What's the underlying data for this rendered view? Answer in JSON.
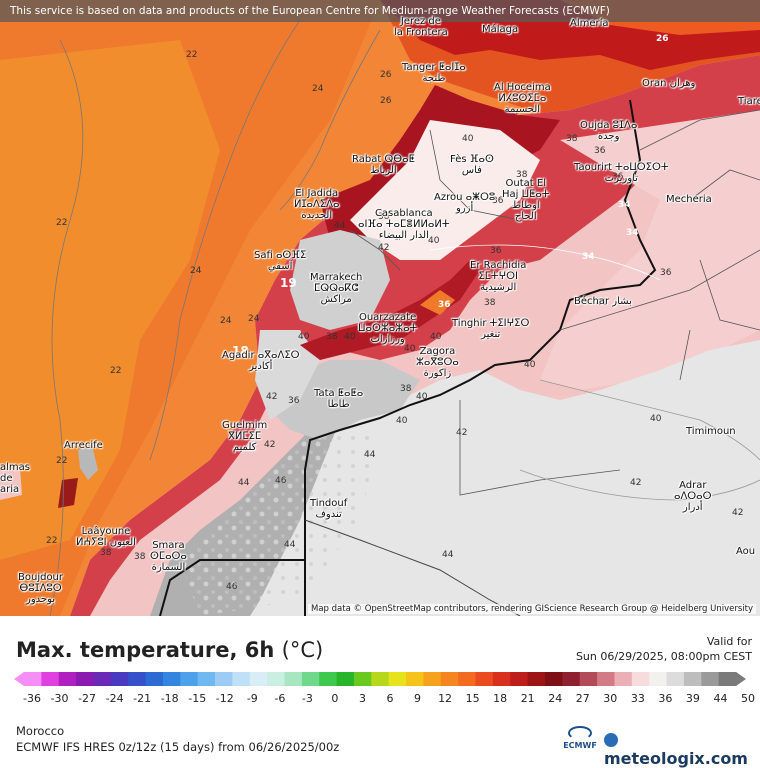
{
  "banner": "This service is based on data and products of the European Centre for Medium-range Weather Forecasts (ECMWF)",
  "attribution": "Map data © OpenStreetMap contributors, rendering GIScience Research Group @ Heidelberg University",
  "cities": [
    {
      "key": "jerez",
      "label": "Jerez de\nla Frontera"
    },
    {
      "key": "malaga",
      "label": "Málaga"
    },
    {
      "key": "almeria",
      "label": "Almería"
    },
    {
      "key": "tanger",
      "label": "Tanger ⵟⴰⵏⵊⴰ\nطنجة"
    },
    {
      "key": "alhoceima",
      "label": "Al Hoceima\nⵍⵃⵓⵙⵉⵎⴰ\nالحسيمة"
    },
    {
      "key": "oran",
      "label": "Oran وهران"
    },
    {
      "key": "tiaret",
      "label": "Tiare"
    },
    {
      "key": "oujda",
      "label": "Oujda ⵓⵊⴷⴰ\nوجدة"
    },
    {
      "key": "rabat",
      "label": "Rabat ⵕⴱⴰⵟ\nالرباط"
    },
    {
      "key": "fes",
      "label": "Fès ⴼⴰⵙ\nفاس"
    },
    {
      "key": "taourirt",
      "label": "Taourirt ⵜⴰⵡⵔⵉⵔⵜ\nتاوريرت"
    },
    {
      "key": "eljadida",
      "label": "El Jadida\nⵍⵊⴰⴷⵉⴷⴰ\nالجديدة"
    },
    {
      "key": "outatelhaj",
      "label": "Outat El\nHaj ⵡⵟⴰⵜ\nاوطاط\nالحاج"
    },
    {
      "key": "azrou",
      "label": "Azrou ⴰⵥⵔⵓ\nأزرو"
    },
    {
      "key": "mecheria",
      "label": "Mecheria"
    },
    {
      "key": "casablanca",
      "label": "Casablanca\nⴰⵏⴼⴰ ⵜⴰⵎⴻⵍⵍⴰⵍⵜ\nالدار البيضاء"
    },
    {
      "key": "safi",
      "label": "Safi ⴰⵙⴼⵉ\nآسفي"
    },
    {
      "key": "errachidia",
      "label": "Er Rachidia\nⵉⵎⵜⵖⵔⵏ\nالرشيدية"
    },
    {
      "key": "marrakech",
      "label": "Marrakech\nⵎⵕⵕⴰⴽⵛ\nمراكش"
    },
    {
      "key": "bechar",
      "label": "Béchar بشار"
    },
    {
      "key": "ouarzazate",
      "label": "Ouarzazate\nⵡⴰⵔⵣⴰⵣⴰⵜ\nورزازات"
    },
    {
      "key": "tinghir",
      "label": "Tinghir ⵜⵉⵏⵖⵉⵔ\nتنغير"
    },
    {
      "key": "agadir",
      "label": "Agadir ⴰⴳⴰⴷⵉⵔ\nأكادير"
    },
    {
      "key": "zagora",
      "label": "Zagora\nⵣⴰⴳⵓⵔⴰ\nزاكورة"
    },
    {
      "key": "tata",
      "label": "Tata ⵟⴰⵟⴰ\nطاطا"
    },
    {
      "key": "guelmim",
      "label": "Guelmim\nⴳⵍⵎⵉⵎ\nكلميم"
    },
    {
      "key": "timimoun",
      "label": "Timimoun"
    },
    {
      "key": "arrecife",
      "label": "Arrecife"
    },
    {
      "key": "palmas",
      "label": "almas\nde\naria"
    },
    {
      "key": "tindouf",
      "label": "Tindouf\nتندوف"
    },
    {
      "key": "laayoune",
      "label": "Laâyoune\nⵍⵄⵢⵓⵏ العيون"
    },
    {
      "key": "adrar",
      "label": "Adrar\nⴰⴷⵔⴰⵔ\nأدرار"
    },
    {
      "key": "smara",
      "label": "Smara\nⵙⵎⴰⵔⴰ\nالسمارة"
    },
    {
      "key": "boujdour",
      "label": "Boujdour\nⴱⵓⵊⴷⵓⵔ\nبوجدور"
    },
    {
      "key": "aoulef",
      "label": "Aou"
    }
  ],
  "isotherm_labels": [
    {
      "key": "i1",
      "text": "26"
    },
    {
      "key": "i2",
      "text": "22"
    },
    {
      "key": "i3",
      "text": "24"
    },
    {
      "key": "i4",
      "text": "26"
    },
    {
      "key": "i5",
      "text": "22"
    },
    {
      "key": "i6",
      "text": "24"
    },
    {
      "key": "i7",
      "text": "22"
    },
    {
      "key": "i8",
      "text": "24"
    },
    {
      "key": "i9",
      "text": "22"
    },
    {
      "key": "i10",
      "text": "40"
    },
    {
      "key": "i11",
      "text": "38"
    },
    {
      "key": "i12",
      "text": "36"
    },
    {
      "key": "i13",
      "text": "38"
    },
    {
      "key": "i14",
      "text": "34"
    },
    {
      "key": "i15",
      "text": "34"
    },
    {
      "key": "i16",
      "text": "36"
    },
    {
      "key": "i17",
      "text": "40"
    },
    {
      "key": "i18",
      "text": "44"
    },
    {
      "key": "i19",
      "text": "42"
    },
    {
      "key": "i20",
      "text": "40"
    },
    {
      "key": "i21",
      "text": "40"
    },
    {
      "key": "i22",
      "text": "38"
    },
    {
      "key": "i23",
      "text": "38"
    },
    {
      "key": "i24",
      "text": "40"
    },
    {
      "key": "i25",
      "text": "42"
    },
    {
      "key": "i26",
      "text": "40"
    },
    {
      "key": "i27",
      "text": "42"
    },
    {
      "key": "i28",
      "text": "44"
    },
    {
      "key": "i29",
      "text": "46"
    },
    {
      "key": "i30",
      "text": "44"
    },
    {
      "key": "i31",
      "text": "44"
    },
    {
      "key": "i32",
      "text": "46"
    },
    {
      "key": "i33",
      "text": "42"
    },
    {
      "key": "i34",
      "text": "44"
    },
    {
      "key": "i35",
      "text": "38"
    },
    {
      "key": "i36",
      "text": "42"
    },
    {
      "key": "i37",
      "text": "36"
    },
    {
      "key": "i38",
      "text": "40"
    },
    {
      "key": "i39",
      "text": "42"
    },
    {
      "key": "i40",
      "text": "40"
    },
    {
      "key": "i41",
      "text": "38"
    },
    {
      "key": "i42",
      "text": "36"
    },
    {
      "key": "i43",
      "text": "38"
    },
    {
      "key": "i44",
      "text": "40"
    },
    {
      "key": "i45",
      "text": "38"
    },
    {
      "key": "i46",
      "text": "36"
    },
    {
      "key": "i47",
      "text": "34"
    },
    {
      "key": "i48",
      "text": "36"
    },
    {
      "key": "i49",
      "text": "26"
    },
    {
      "key": "i50",
      "text": "40"
    },
    {
      "key": "i51",
      "text": "22"
    },
    {
      "key": "i52",
      "text": "24"
    },
    {
      "key": "i53",
      "text": "18"
    },
    {
      "key": "i54",
      "text": "19"
    },
    {
      "key": "i55",
      "text": "36"
    },
    {
      "key": "i56",
      "text": "40"
    }
  ],
  "footer": {
    "title": "Max. temperature, 6h",
    "unit": "(°C)",
    "valid_label": "Valid for",
    "valid_value": "Sun 06/29/2025, 08:00pm CEST",
    "region": "Morocco",
    "model": "ECMWF IFS HRES 0z/12z (15 days) from 06/26/2025/00z",
    "ecmwf_logo": "ECMWF",
    "brand": "meteologix.com"
  },
  "scale": {
    "ticks": [
      "-36",
      "-30",
      "-27",
      "-24",
      "-21",
      "-18",
      "-15",
      "-12",
      "-9",
      "-6",
      "-3",
      "0",
      "3",
      "6",
      "9",
      "12",
      "15",
      "18",
      "21",
      "24",
      "27",
      "30",
      "33",
      "36",
      "39",
      "44",
      "50"
    ],
    "colors": [
      "#f58ef5",
      "#e040e0",
      "#b020c0",
      "#8a1ab0",
      "#6a2ab5",
      "#4a3ac0",
      "#3550c8",
      "#2d6ad2",
      "#3385e0",
      "#4da0ea",
      "#70b8f0",
      "#9cccf4",
      "#bfe0f7",
      "#d8edf5",
      "#c9eee2",
      "#a8e6c2",
      "#6fd88a",
      "#3ec84e",
      "#29b52a",
      "#6bc81f",
      "#b7d81a",
      "#e6e21c",
      "#f6c31a",
      "#f7a21c",
      "#f5861f",
      "#f26b21",
      "#ec4a20",
      "#d8301c",
      "#bf1d1a",
      "#9c1414",
      "#7e0f14",
      "#8f2030",
      "#b24a58",
      "#d27a86",
      "#eab0b6",
      "#f6dcdc",
      "#f3f0f0",
      "#dcdcdc",
      "#bdbdbd",
      "#9a9a9a",
      "#7a7a7a"
    ]
  }
}
